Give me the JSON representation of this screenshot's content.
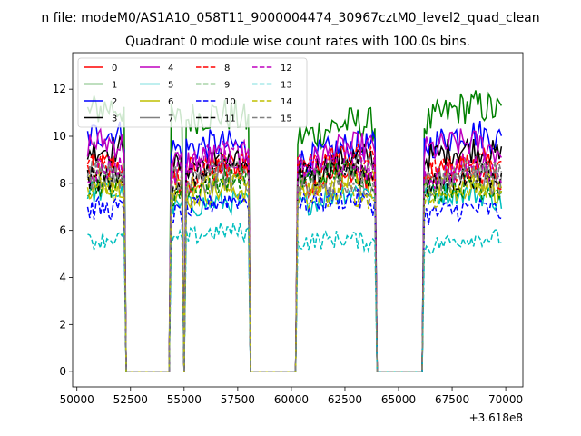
{
  "figure_title": "n file: modeM0/AS1A10_058T11_9000004474_30967cztM0_level2_quad_clean",
  "chart_data": {
    "type": "line",
    "title": "Quadrant 0 module wise count rates with 100.0s bins.",
    "xlabel": "",
    "ylabel": "",
    "x_offset_label": "+3.618e8",
    "xlim": [
      49800,
      70800
    ],
    "ylim": [
      -0.65,
      13.55
    ],
    "xticks": [
      50000,
      52500,
      55000,
      57500,
      60000,
      62500,
      65000,
      67500,
      70000
    ],
    "yticks": [
      0,
      2,
      4,
      6,
      8,
      10,
      12
    ],
    "legend_position": "top-left",
    "legend_columns": 4,
    "x_start": 50500,
    "bin_seconds": 100,
    "segments": [
      {
        "start": 50500,
        "end": 52200
      },
      {
        "start": 54400,
        "end": 54900
      },
      {
        "start": 55100,
        "end": 55500
      },
      {
        "start": 55600,
        "end": 58000
      },
      {
        "start": 60300,
        "end": 61700
      },
      {
        "start": 61800,
        "end": 63900
      },
      {
        "start": 66200,
        "end": 69800
      }
    ],
    "series": [
      {
        "name": "0",
        "color": "#ff0000",
        "dash": "solid",
        "level": 8.4
      },
      {
        "name": "1",
        "color": "#008000",
        "dash": "solid",
        "level": 10.6
      },
      {
        "name": "2",
        "color": "#0000ff",
        "dash": "solid",
        "level": 9.5
      },
      {
        "name": "3",
        "color": "#000000",
        "dash": "solid",
        "level": 8.9
      },
      {
        "name": "4",
        "color": "#bf00bf",
        "dash": "solid",
        "level": 9.2
      },
      {
        "name": "5",
        "color": "#00bfbf",
        "dash": "solid",
        "level": 7.3
      },
      {
        "name": "6",
        "color": "#bfbf00",
        "dash": "solid",
        "level": 7.8
      },
      {
        "name": "7",
        "color": "#808080",
        "dash": "solid",
        "level": 8.2
      },
      {
        "name": "8",
        "color": "#ff0000",
        "dash": "dashed",
        "level": 8.6
      },
      {
        "name": "9",
        "color": "#008000",
        "dash": "dashed",
        "level": 8.0
      },
      {
        "name": "10",
        "color": "#0000ff",
        "dash": "dashed",
        "level": 7.0
      },
      {
        "name": "11",
        "color": "#000000",
        "dash": "dashed",
        "level": 8.3
      },
      {
        "name": "12",
        "color": "#bf00bf",
        "dash": "dashed",
        "level": 8.7
      },
      {
        "name": "13",
        "color": "#00bfbf",
        "dash": "dashed",
        "level": 5.6
      },
      {
        "name": "14",
        "color": "#bfbf00",
        "dash": "dashed",
        "level": 7.6
      },
      {
        "name": "15",
        "color": "#808080",
        "dash": "dashed",
        "level": 8.1
      }
    ]
  }
}
